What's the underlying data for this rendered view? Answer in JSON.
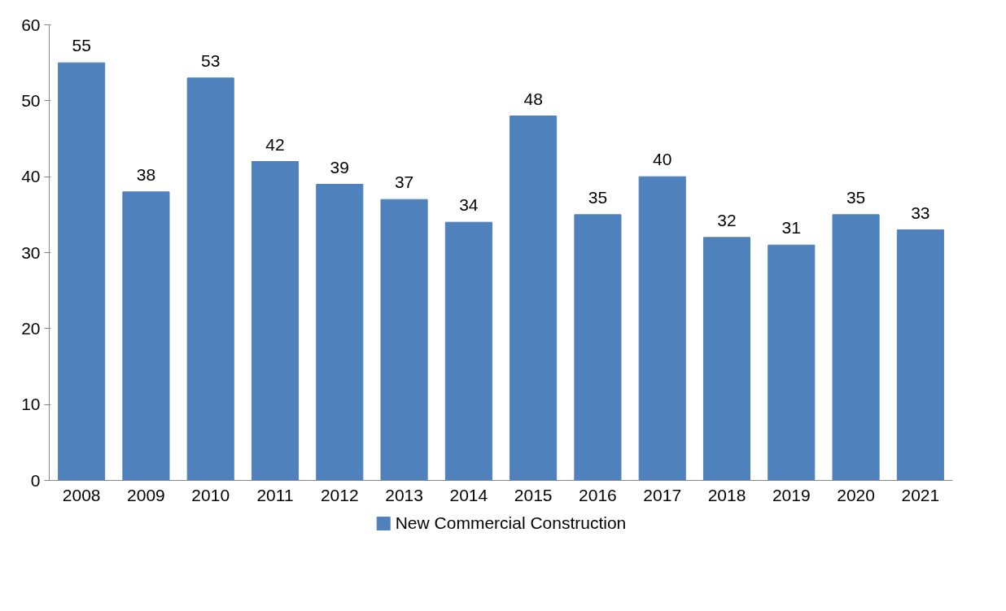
{
  "chart_data": {
    "type": "bar",
    "categories": [
      "2008",
      "2009",
      "2010",
      "2011",
      "2012",
      "2013",
      "2014",
      "2015",
      "2016",
      "2017",
      "2018",
      "2019",
      "2020",
      "2021"
    ],
    "series": [
      {
        "name": "New Commercial Construction",
        "color": "#4f81bd",
        "values": [
          55,
          38,
          53,
          42,
          39,
          37,
          34,
          48,
          35,
          40,
          32,
          31,
          35,
          33
        ]
      }
    ],
    "ylim": [
      0,
      60
    ],
    "yticks": [
      0,
      10,
      20,
      30,
      40,
      50,
      60
    ],
    "grid": false,
    "legend": "bottom",
    "data_labels": true
  }
}
